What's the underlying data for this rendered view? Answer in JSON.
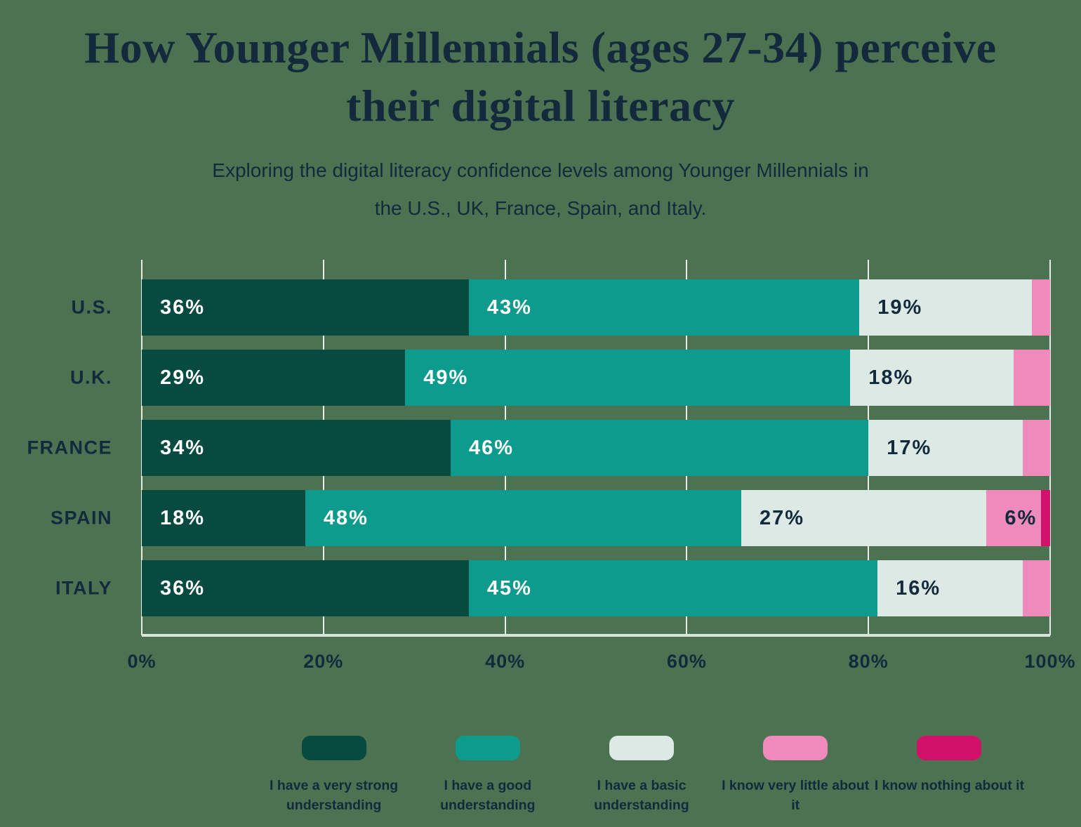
{
  "background_color": "#4c7251",
  "text_color": "#122a3c",
  "title": "How Younger Millennials (ages 27-34) perceive their digital literacy",
  "subtitle": "Exploring the digital literacy confidence levels among Younger Millennials in the U.S., UK, France, Spain, and Italy.",
  "chart_data": {
    "type": "bar",
    "stacked": true,
    "orientation": "horizontal",
    "title": "How Younger Millennials (ages 27-34) perceive their digital literacy",
    "categories": [
      "U.S.",
      "U.K.",
      "FRANCE",
      "SPAIN",
      "ITALY"
    ],
    "series": [
      {
        "name": "I have a very strong understanding",
        "color": "#074a40",
        "label_color": "#ffffff",
        "values": [
          36,
          29,
          34,
          18,
          36
        ]
      },
      {
        "name": "I have a good understanding",
        "color": "#0d9b8d",
        "label_color": "#ffffff",
        "values": [
          43,
          49,
          46,
          48,
          45
        ]
      },
      {
        "name": "I have a basic understanding",
        "color": "#dde9e4",
        "label_color": "#122a3c",
        "values": [
          19,
          18,
          17,
          27,
          16
        ]
      },
      {
        "name": "I know very little about it",
        "color": "#ee8abc",
        "label_color": "#122a3c",
        "values": [
          2,
          4,
          3,
          6,
          3
        ]
      },
      {
        "name": "I know nothing about it",
        "color": "#d1126a",
        "label_color": "#122a3c",
        "values": [
          0,
          0,
          0,
          1,
          0
        ]
      }
    ],
    "x_ticks": [
      "0%",
      "20%",
      "40%",
      "60%",
      "80%",
      "100%"
    ],
    "xlim": [
      0,
      100
    ],
    "value_suffix": "%",
    "min_value_for_label": 6,
    "grid": true,
    "gridline_color": "#e8ede7",
    "axis_line_color": "#dde4db",
    "legend_position": "bottom"
  }
}
